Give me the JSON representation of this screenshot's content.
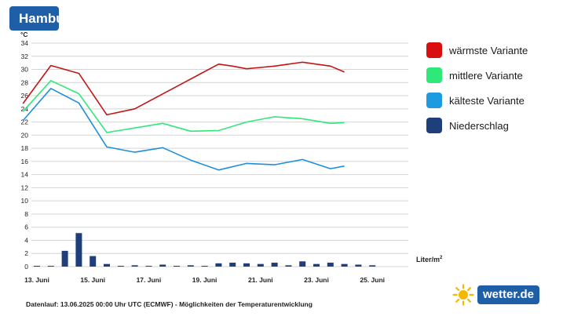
{
  "header": {
    "title": "Hambu"
  },
  "legend": [
    {
      "label": "wärmste Variante",
      "color": "#d90f0f"
    },
    {
      "label": "mittlere Variante",
      "color": "#2ee87a"
    },
    {
      "label": "kälteste Variante",
      "color": "#1e9be0"
    },
    {
      "label": "Niederschlag",
      "color": "#1f3f7a"
    }
  ],
  "precip_unit": "Liter/m",
  "precip_unit_sup": "2",
  "footer": "Datenlauf: 13.06.2025 00:00 Uhr UTC (ECMWF) - Möglichkeiten der Temperaturentwicklung",
  "brand": {
    "text": "wetter.de"
  },
  "chart_data": {
    "type": "line",
    "title": "",
    "ylabel": "°C",
    "ylim": [
      0,
      34
    ],
    "yticks": [
      0,
      2,
      4,
      6,
      8,
      10,
      12,
      14,
      16,
      18,
      20,
      22,
      24,
      26,
      28,
      30,
      32,
      34
    ],
    "grid": true,
    "xlim": [
      0,
      14
    ],
    "xtick_labels": [
      {
        "x": 0,
        "label": "13. Juni"
      },
      {
        "x": 2,
        "label": "15. Juni"
      },
      {
        "x": 4,
        "label": "17. Juni"
      },
      {
        "x": 6,
        "label": "19. Juni"
      },
      {
        "x": 8,
        "label": "21. Juni"
      },
      {
        "x": 10,
        "label": "23. Juni"
      },
      {
        "x": 12,
        "label": "25. Juni"
      }
    ],
    "series": [
      {
        "name": "wärmste Variante",
        "color": "#c41515",
        "x": [
          -0.5,
          0.5,
          1.5,
          2.5,
          3.5,
          5.0,
          6.5,
          7.0,
          7.5,
          8.0,
          8.5,
          9.0,
          9.5,
          10.0,
          10.5,
          11.0
        ],
        "y": [
          24.8,
          30.6,
          29.4,
          23.1,
          24.0,
          27.4,
          30.8,
          30.5,
          30.1,
          30.3,
          30.5,
          30.8,
          31.1,
          30.8,
          30.5,
          29.6
        ]
      },
      {
        "name": "mittlere Variante",
        "color": "#2ee87a",
        "x": [
          -0.5,
          0.5,
          1.5,
          2.5,
          4.5,
          5.5,
          6.5,
          7.5,
          8.5,
          9.5,
          10.5,
          11.0
        ],
        "y": [
          23.6,
          28.3,
          26.3,
          20.4,
          21.8,
          20.6,
          20.7,
          22.0,
          22.8,
          22.5,
          21.8,
          21.9
        ]
      },
      {
        "name": "kälteste Variante",
        "color": "#1e8fdb",
        "x": [
          -0.5,
          0.5,
          1.5,
          2.5,
          3.5,
          4.5,
          5.5,
          6.5,
          7.5,
          8.5,
          9.5,
          10.5,
          11.0
        ],
        "y": [
          22.2,
          27.1,
          24.9,
          18.2,
          17.4,
          18.1,
          16.2,
          14.7,
          15.7,
          15.5,
          16.3,
          14.9,
          15.3
        ]
      }
    ],
    "precipitation": {
      "name": "Niederschlag",
      "color": "#1f3f7a",
      "x": [
        0,
        0.5,
        1.0,
        1.5,
        2.0,
        2.5,
        3.0,
        3.5,
        4.0,
        4.5,
        5.0,
        5.5,
        6.0,
        6.5,
        7.0,
        7.5,
        8.0,
        8.5,
        9.0,
        9.5,
        10.0,
        10.5,
        11.0,
        11.5,
        12.0
      ],
      "values": [
        0.05,
        0.1,
        2.4,
        5.1,
        1.6,
        0.4,
        0.1,
        0.2,
        0.1,
        0.3,
        0.1,
        0.2,
        0.1,
        0.5,
        0.6,
        0.5,
        0.4,
        0.6,
        0.2,
        0.8,
        0.4,
        0.6,
        0.4,
        0.3,
        0.2
      ]
    }
  }
}
